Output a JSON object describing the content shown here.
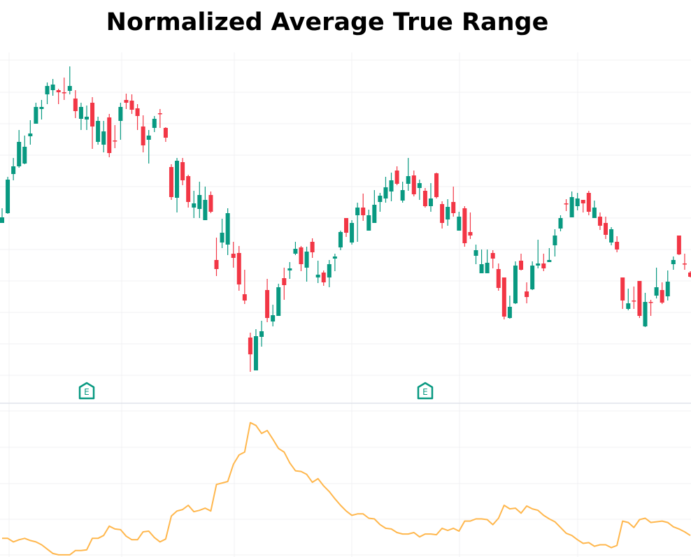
{
  "chart_data": {
    "type": "candlestick",
    "title": "Normalized Average True Range",
    "colors": {
      "up": "#089981",
      "down": "#F23645",
      "natr_line": "#FFB74D",
      "grid": "#F0F0F3",
      "pane_separator": "#E0E3EB",
      "earnings_marker": "#089981"
    },
    "grid": true,
    "price_ylim": [
      2.5,
      52.5
    ],
    "natr_ylim": [
      -0.3,
      21
    ],
    "earnings_markers": [
      {
        "label": "E",
        "candle_index": 15
      },
      {
        "label": "E",
        "candle_index": 75
      }
    ],
    "ohlc": [
      [
        28.1,
        30.2,
        28.1,
        28.9
      ],
      [
        29.5,
        34.7,
        29.4,
        34.3
      ],
      [
        35.1,
        37.4,
        34.2,
        36.2
      ],
      [
        36.2,
        41.4,
        36.0,
        39.7
      ],
      [
        36.6,
        40.6,
        36.5,
        39.0
      ],
      [
        40.5,
        42.8,
        39.3,
        40.9
      ],
      [
        42.3,
        45.3,
        42.3,
        44.7
      ],
      [
        44.4,
        45.7,
        42.9,
        44.7
      ],
      [
        46.5,
        48.2,
        45.1,
        47.7
      ],
      [
        47.1,
        48.7,
        46.3,
        47.9
      ],
      [
        47.1,
        47.3,
        45.1,
        46.8
      ],
      [
        46.8,
        48.9,
        45.7,
        46.7
      ],
      [
        47.0,
        50.5,
        46.5,
        47.7
      ],
      [
        45.9,
        47.1,
        43.1,
        44.1
      ],
      [
        43.0,
        45.3,
        41.4,
        44.7
      ],
      [
        42.9,
        44.9,
        41.4,
        43.3
      ],
      [
        45.3,
        46.1,
        38.7,
        41.9
      ],
      [
        39.7,
        43.3,
        39.3,
        42.7
      ],
      [
        39.3,
        42.7,
        38.2,
        41.2
      ],
      [
        43.2,
        43.7,
        37.5,
        38.1
      ],
      [
        39.9,
        42.1,
        38.8,
        39.8
      ],
      [
        42.7,
        45.3,
        40.0,
        44.7
      ],
      [
        45.7,
        46.6,
        44.4,
        45.3
      ],
      [
        45.6,
        46.5,
        43.7,
        44.3
      ],
      [
        44.5,
        45.1,
        41.4,
        43.4
      ],
      [
        41.9,
        43.5,
        38.2,
        39.2
      ],
      [
        40.0,
        41.4,
        36.6,
        40.6
      ],
      [
        41.7,
        43.4,
        41.1,
        43.0
      ],
      [
        43.8,
        44.4,
        41.7,
        43.7
      ],
      [
        41.7,
        41.8,
        39.7,
        40.3
      ],
      [
        36.1,
        36.5,
        31.4,
        31.8
      ],
      [
        31.7,
        37.4,
        29.6,
        37.0
      ],
      [
        36.8,
        37.4,
        33.5,
        34.2
      ],
      [
        34.8,
        35.0,
        30.3,
        31.1
      ],
      [
        30.3,
        32.7,
        28.8,
        30.9
      ],
      [
        30.1,
        34.0,
        28.8,
        32.1
      ],
      [
        28.5,
        33.3,
        28.5,
        31.4
      ],
      [
        32.1,
        32.6,
        29.5,
        29.7
      ],
      [
        22.8,
        26.0,
        20.5,
        21.5
      ],
      [
        25.3,
        28.7,
        24.5,
        26.7
      ],
      [
        25.0,
        30.2,
        23.5,
        29.5
      ],
      [
        23.7,
        25.4,
        21.7,
        23.1
      ],
      [
        23.8,
        24.8,
        18.4,
        19.3
      ],
      [
        17.9,
        21.4,
        16.5,
        17.0
      ],
      [
        11.7,
        12.4,
        6.8,
        9.3
      ],
      [
        7.0,
        12.9,
        7.0,
        11.9
      ],
      [
        11.8,
        14.1,
        10.4,
        12.6
      ],
      [
        18.5,
        20.1,
        13.9,
        14.5
      ],
      [
        14.0,
        16.4,
        13.3,
        14.9
      ],
      [
        14.8,
        19.4,
        14.8,
        18.9
      ],
      [
        20.2,
        21.7,
        17.1,
        19.2
      ],
      [
        21.3,
        22.5,
        20.1,
        21.6
      ],
      [
        23.7,
        25.4,
        23.5,
        24.4
      ],
      [
        24.6,
        24.8,
        21.2,
        22.2
      ],
      [
        21.7,
        24.7,
        19.7,
        24.0
      ],
      [
        25.4,
        25.9,
        23.1,
        23.9
      ],
      [
        20.3,
        22.7,
        19.5,
        20.7
      ],
      [
        21.0,
        21.3,
        19.1,
        19.6
      ],
      [
        20.3,
        22.8,
        18.9,
        22.2
      ],
      [
        23.0,
        23.7,
        21.2,
        23.3
      ],
      [
        24.6,
        27.0,
        24.2,
        26.8
      ],
      [
        28.8,
        28.8,
        26.1,
        26.7
      ],
      [
        25.3,
        28.5,
        25.0,
        28.1
      ],
      [
        29.2,
        31.0,
        25.4,
        30.3
      ],
      [
        30.3,
        32.3,
        28.4,
        29.2
      ],
      [
        27.0,
        30.0,
        27.0,
        29.2
      ],
      [
        28.1,
        32.8,
        28.1,
        30.7
      ],
      [
        31.1,
        32.4,
        29.7,
        32.0
      ],
      [
        31.6,
        34.7,
        31.0,
        33.2
      ],
      [
        32.6,
        35.3,
        31.2,
        34.2
      ],
      [
        35.6,
        36.2,
        33.5,
        33.7
      ],
      [
        31.3,
        34.0,
        31.0,
        32.8
      ],
      [
        33.7,
        37.4,
        32.7,
        34.8
      ],
      [
        34.9,
        35.6,
        31.9,
        32.2
      ],
      [
        33.1,
        34.3,
        31.4,
        33.8
      ],
      [
        32.7,
        33.1,
        30.3,
        30.5
      ],
      [
        30.5,
        33.8,
        29.7,
        31.6
      ],
      [
        35.2,
        35.3,
        31.6,
        31.8
      ],
      [
        30.8,
        31.2,
        27.3,
        28.1
      ],
      [
        28.6,
        31.5,
        27.7,
        30.4
      ],
      [
        31.1,
        33.3,
        29.0,
        29.5
      ],
      [
        27.0,
        29.7,
        27.0,
        29.0
      ],
      [
        30.2,
        30.5,
        24.7,
        25.2
      ],
      [
        26.8,
        29.6,
        25.8,
        26.3
      ],
      [
        23.4,
        25.0,
        22.2,
        24.2
      ],
      [
        20.9,
        24.3,
        20.9,
        22.2
      ],
      [
        20.9,
        24.3,
        20.9,
        22.4
      ],
      [
        23.8,
        24.2,
        21.6,
        23.0
      ],
      [
        21.5,
        22.3,
        18.4,
        18.8
      ],
      [
        20.3,
        20.3,
        14.3,
        14.7
      ],
      [
        14.5,
        17.7,
        14.4,
        16.1
      ],
      [
        16.6,
        22.6,
        16.5,
        22.0
      ],
      [
        22.7,
        23.7,
        21.3,
        21.4
      ],
      [
        18.3,
        19.6,
        16.6,
        17.5
      ],
      [
        18.6,
        22.6,
        18.5,
        22.0
      ],
      [
        22.0,
        25.7,
        21.6,
        22.3
      ],
      [
        22.3,
        23.7,
        21.2,
        21.6
      ],
      [
        22.5,
        24.5,
        22.5,
        22.8
      ],
      [
        24.9,
        27.2,
        23.3,
        26.3
      ],
      [
        27.3,
        29.2,
        26.9,
        28.8
      ],
      [
        30.9,
        31.5,
        29.8,
        30.8
      ],
      [
        28.9,
        32.6,
        28.9,
        31.8
      ],
      [
        30.5,
        32.4,
        29.9,
        31.6
      ],
      [
        31.4,
        31.4,
        29.6,
        30.9
      ],
      [
        32.4,
        32.7,
        29.2,
        29.7
      ],
      [
        28.8,
        31.3,
        28.8,
        30.3
      ],
      [
        29.0,
        29.6,
        27.1,
        27.7
      ],
      [
        28.1,
        29.0,
        25.8,
        26.4
      ],
      [
        25.3,
        27.5,
        24.9,
        27.2
      ],
      [
        25.4,
        26.2,
        23.9,
        24.3
      ],
      [
        20.3,
        20.3,
        15.8,
        17.0
      ],
      [
        15.8,
        18.7,
        15.6,
        16.6
      ],
      [
        17.0,
        19.0,
        15.8,
        16.9
      ],
      [
        19.8,
        19.8,
        14.5,
        14.8
      ],
      [
        13.3,
        18.1,
        13.2,
        16.8
      ],
      [
        16.8,
        17.1,
        14.8,
        16.7
      ],
      [
        17.7,
        21.7,
        17.3,
        18.9
      ],
      [
        18.5,
        19.6,
        16.5,
        16.7
      ],
      [
        17.6,
        21.3,
        17.0,
        19.7
      ],
      [
        22.2,
        23.3,
        21.4,
        22.8
      ],
      [
        26.3,
        26.3,
        23.5,
        23.6
      ],
      [
        22.3,
        23.7,
        21.4,
        22.2
      ],
      [
        21.0,
        21.2,
        20.3,
        20.4
      ]
    ],
    "natr": [
      2.3,
      2.3,
      1.8,
      2.1,
      2.3,
      2.0,
      1.8,
      1.4,
      0.8,
      0.2,
      0.0,
      0.0,
      0.0,
      0.6,
      0.6,
      0.7,
      2.3,
      2.3,
      2.7,
      4.0,
      3.6,
      3.5,
      2.6,
      2.1,
      2.1,
      3.2,
      3.3,
      2.4,
      1.8,
      2.2,
      5.4,
      6.1,
      6.3,
      6.9,
      6.0,
      6.2,
      6.5,
      6.1,
      9.8,
      10.0,
      10.2,
      12.6,
      13.9,
      14.3,
      18.4,
      18.0,
      16.9,
      17.3,
      16.1,
      14.8,
      14.3,
      12.8,
      11.7,
      11.6,
      11.2,
      10.1,
      10.6,
      9.6,
      8.8,
      7.8,
      6.9,
      6.1,
      5.5,
      5.7,
      5.7,
      5.1,
      5.0,
      4.2,
      3.7,
      3.6,
      3.1,
      2.9,
      2.9,
      3.1,
      2.5,
      2.9,
      2.9,
      2.8,
      3.7,
      3.4,
      3.7,
      3.3,
      4.7,
      4.7,
      5.0,
      5.0,
      4.9,
      4.2,
      5.1,
      6.9,
      6.4,
      6.5,
      5.8,
      6.8,
      6.4,
      6.2,
      5.5,
      5.0,
      4.6,
      3.8,
      3.0,
      2.7,
      2.1,
      1.6,
      1.7,
      1.2,
      1.4,
      1.4,
      1.0,
      1.3,
      4.7,
      4.5,
      3.8,
      4.9,
      5.1,
      4.5,
      4.6,
      4.7,
      4.5,
      3.9,
      3.6,
      3.2,
      2.7
    ]
  }
}
